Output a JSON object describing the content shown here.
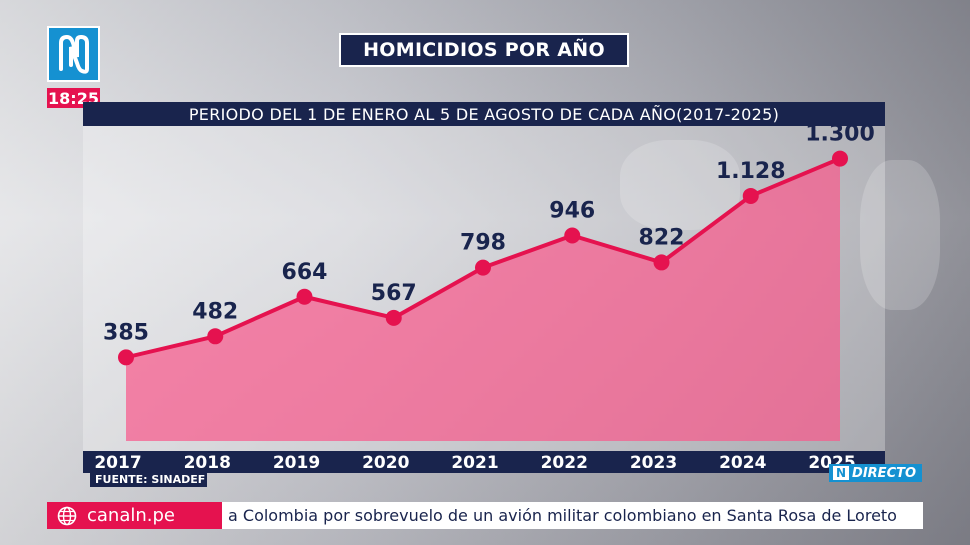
{
  "header": {
    "clock": "18:25",
    "title": "HOMICIDIOS POR AÑO",
    "subtitle": "PERIODO DEL 1 DE ENERO AL 5 DE AGOSTO DE CADA AÑO(2017-2025)"
  },
  "footer": {
    "source": "FUENTE: SINADEF",
    "live_badge": "N",
    "live_label": "DIRECTO",
    "ticker_site": "canaln.pe",
    "ticker_text": "a Colombia por sobrevuelo de un avión militar colombiano en Santa Rosa de Loreto"
  },
  "colors": {
    "navy": "#19244d",
    "accent_pink": "#e5124f",
    "fill_pink": "#f85a8c",
    "brand_blue": "#1591d1"
  },
  "icons": {
    "logo": "canal-n-logo",
    "globe": "globe-icon"
  },
  "chart_data": {
    "type": "area",
    "categories": [
      "2017",
      "2018",
      "2019",
      "2020",
      "2021",
      "2022",
      "2023",
      "2024",
      "2025"
    ],
    "values": [
      385,
      482,
      664,
      567,
      798,
      946,
      822,
      1128,
      1300
    ],
    "value_labels": [
      "385",
      "482",
      "664",
      "567",
      "798",
      "946",
      "822",
      "1.128",
      "1.300"
    ],
    "title": "HOMICIDIOS POR AÑO",
    "subtitle": "PERIODO DEL 1 DE ENERO AL 5 DE AGOSTO DE CADA AÑO(2017-2025)",
    "ylim": [
      0,
      1450
    ],
    "grid": false,
    "legend": "none"
  }
}
